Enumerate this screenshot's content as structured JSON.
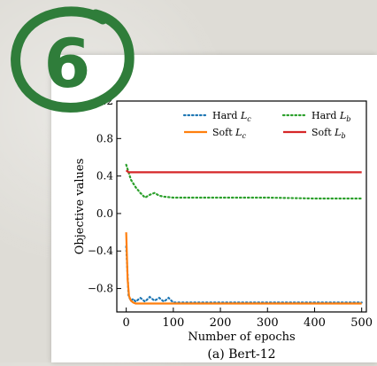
{
  "badge": {
    "number": "6",
    "color": "#2f7d3a"
  },
  "chart_data": {
    "type": "line",
    "xlabel": "Number of epochs",
    "ylabel": "Objective values",
    "caption": "(a) Bert-12",
    "xlim": [
      -20,
      510
    ],
    "ylim": [
      -1.05,
      1.2
    ],
    "xticks": [
      0,
      100,
      200,
      300,
      400,
      500
    ],
    "yticks": [
      1.2,
      0.8,
      0.4,
      0.0,
      -0.4,
      -0.8
    ],
    "ytick_labels": [
      "1.2",
      "0.8",
      "0.4",
      "0.0",
      "−0.4",
      "−0.8"
    ],
    "grid": false,
    "legend_position": "top",
    "series": [
      {
        "name": "Hard L_c",
        "label": "Hard",
        "sub": "c",
        "color": "#1f77b4",
        "style": "dotted",
        "x": [
          0,
          5,
          10,
          15,
          20,
          30,
          40,
          50,
          60,
          70,
          80,
          90,
          100,
          150,
          200,
          300,
          400,
          500
        ],
        "y": [
          -0.35,
          -0.88,
          -0.93,
          -0.91,
          -0.94,
          -0.9,
          -0.94,
          -0.89,
          -0.93,
          -0.9,
          -0.94,
          -0.9,
          -0.95,
          -0.95,
          -0.95,
          -0.95,
          -0.95,
          -0.95
        ]
      },
      {
        "name": "Hard L_b",
        "label": "Hard",
        "sub": "b",
        "color": "#2ca02c",
        "style": "dotted",
        "x": [
          0,
          5,
          10,
          20,
          30,
          40,
          50,
          60,
          70,
          80,
          100,
          150,
          200,
          300,
          400,
          500
        ],
        "y": [
          0.52,
          0.44,
          0.36,
          0.28,
          0.22,
          0.17,
          0.2,
          0.22,
          0.19,
          0.18,
          0.17,
          0.17,
          0.17,
          0.17,
          0.16,
          0.16
        ]
      },
      {
        "name": "Soft L_c",
        "label": "Soft",
        "sub": "c",
        "color": "#ff7f0e",
        "style": "solid",
        "x": [
          0,
          3,
          6,
          10,
          15,
          20,
          30,
          50,
          100,
          200,
          300,
          400,
          500
        ],
        "y": [
          -0.2,
          -0.7,
          -0.88,
          -0.93,
          -0.95,
          -0.96,
          -0.96,
          -0.96,
          -0.96,
          -0.96,
          -0.96,
          -0.96,
          -0.96
        ]
      },
      {
        "name": "Soft L_b",
        "label": "Soft",
        "sub": "b",
        "color": "#d62728",
        "style": "solid",
        "x": [
          0,
          5,
          10,
          20,
          50,
          100,
          200,
          300,
          400,
          500
        ],
        "y": [
          0.46,
          0.44,
          0.44,
          0.44,
          0.44,
          0.44,
          0.44,
          0.44,
          0.44,
          0.44
        ]
      }
    ]
  }
}
